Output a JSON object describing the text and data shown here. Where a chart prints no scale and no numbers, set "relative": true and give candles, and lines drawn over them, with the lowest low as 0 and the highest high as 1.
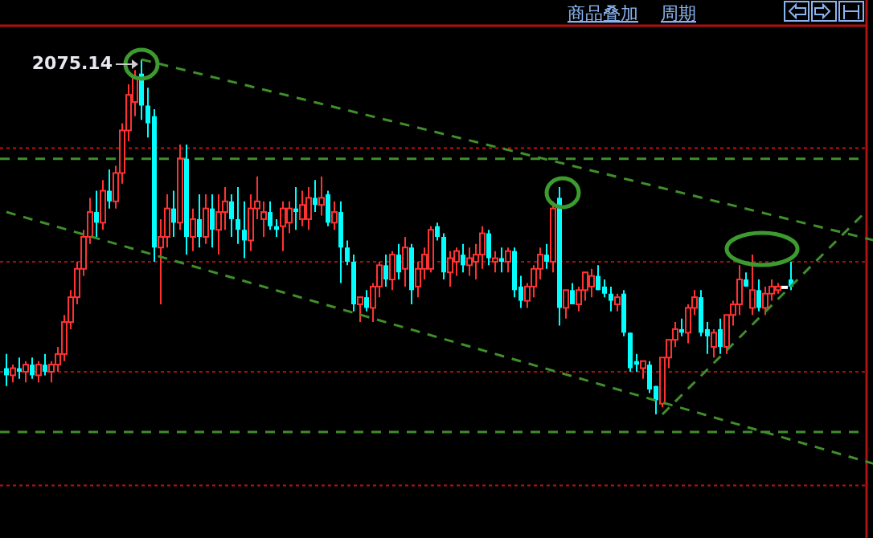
{
  "chart_data": {
    "type": "candlestick",
    "relative": true,
    "categories": [
      null,
      null,
      null,
      null,
      null,
      null,
      null,
      null,
      null,
      null,
      null,
      null,
      null,
      null,
      null,
      null,
      null,
      null,
      null,
      null,
      null,
      null,
      null,
      null,
      null,
      null,
      null,
      null,
      null,
      null,
      null,
      null,
      null,
      null,
      null,
      null,
      null,
      null,
      null,
      null,
      null,
      null,
      null,
      null,
      null,
      null,
      null,
      null,
      null,
      null,
      null,
      null,
      null,
      null,
      null,
      null,
      null,
      null,
      null,
      null,
      null,
      null,
      null,
      null,
      null,
      null,
      null,
      null,
      null,
      null,
      null,
      null,
      null,
      null,
      null,
      null,
      null,
      null,
      null,
      null,
      null,
      null,
      null,
      null,
      null,
      null,
      null,
      null,
      null,
      null,
      null,
      null,
      null,
      null,
      null,
      null,
      null,
      null,
      null,
      null,
      null,
      null,
      null,
      null,
      null,
      null,
      null,
      null,
      null,
      null,
      null,
      null,
      null,
      null,
      null,
      null,
      null,
      null,
      null,
      null,
      null,
      null,
      null,
      null,
      null,
      null,
      null,
      null,
      null,
      null,
      null,
      null,
      null,
      null,
      null,
      null
    ],
    "series": [
      {
        "colors": [
          "#00ffff",
          "#ff3232",
          "#00ffff",
          "#ff3232",
          "#00ffff",
          "#ff3232",
          "#00ffff",
          "#ff3232",
          "#ff3232",
          "#ff3232",
          "#ff3232",
          "#ff3232",
          "#ff3232",
          "#ff3232",
          "#00ffff",
          "#ff3232",
          "#00ffff",
          "#ff3232",
          "#ff3232",
          "#ff3232",
          "#ff3232",
          "#00ffff",
          "#00ffff",
          "#00ffff",
          "#ff3232",
          "#ff3232",
          "#00ffff",
          "#ff3232",
          "#00ffff",
          "#ff3232",
          "#00ffff",
          "#ff3232",
          "#00ffff",
          "#ff3232",
          "#ff3232",
          "#00ffff",
          "#00ffff",
          "#00ffff",
          "#ff3232",
          "#ff3232",
          "#ff3232",
          "#00ffff",
          "#00ffff",
          "#ff3232",
          "#ff3232",
          "#00ffff",
          "#ff3232",
          "#ff3232",
          "#00ffff",
          "#ff3232",
          "#00ffff",
          "#ff3232",
          "#00ffff",
          "#00ffff",
          "#00ffff",
          "#ff3232",
          "#00ffff",
          "#ff3232",
          "#ff3232",
          "#00ffff",
          "#ff3232",
          "#00ffff",
          "#ff3232",
          "#00ffff",
          "#ff3232",
          "#ff3232",
          "#ff3232",
          "#00ffff",
          "#00ffff",
          "#ff3232",
          "#ff3232",
          "#00ffff",
          "#ff3232",
          "#ff3232",
          "#ff3232",
          "#00ffff",
          "#ff3232",
          "#00ffff",
          "#ff3232",
          "#00ffff",
          "#00ffff",
          "#ff3232",
          "#ff3232",
          "#ff3232",
          "#00ffff",
          "#ff3232",
          "#00ffff",
          "#ff3232",
          "#00ffff",
          "#ff3232",
          "#ff3232",
          "#ff3232",
          "#00ffff",
          "#00ffff",
          "#00ffff",
          "#ff3232",
          "#00ffff",
          "#00ffff",
          "#00ffff",
          "#ff3232",
          "#00ffff",
          "#00ffff",
          "#ff3232",
          "#ff3232",
          "#ff3232",
          "#00ffff",
          "#ff3232",
          "#ff3232",
          "#00ffff",
          "#00ffff",
          "#ff3232",
          "#00ffff",
          "#ff3232",
          "#ff3232",
          "#ff3232",
          "#00ffff",
          "#ff3232",
          "#00ffff",
          "#ff3232",
          "#ff3232",
          "#ff3232",
          "#ffffff",
          "#00ffff",
          null,
          null,
          null,
          null,
          null,
          null,
          null,
          null,
          null,
          null,
          null,
          null,
          null
        ],
        "ohlc": [
          [
            0.13,
            0.17,
            0.08,
            0.11
          ],
          [
            0.11,
            0.14,
            0.09,
            0.13
          ],
          [
            0.13,
            0.16,
            0.1,
            0.12
          ],
          [
            0.12,
            0.15,
            0.09,
            0.14
          ],
          [
            0.14,
            0.16,
            0.1,
            0.11
          ],
          [
            0.11,
            0.15,
            0.09,
            0.14
          ],
          [
            0.14,
            0.17,
            0.11,
            0.12
          ],
          [
            0.12,
            0.15,
            0.09,
            0.14
          ],
          [
            0.14,
            0.19,
            0.12,
            0.17
          ],
          [
            0.17,
            0.28,
            0.15,
            0.26
          ],
          [
            0.26,
            0.35,
            0.24,
            0.33
          ],
          [
            0.33,
            0.43,
            0.31,
            0.41
          ],
          [
            0.41,
            0.52,
            0.39,
            0.5
          ],
          [
            0.5,
            0.61,
            0.48,
            0.57
          ],
          [
            0.57,
            0.63,
            0.5,
            0.54
          ],
          [
            0.54,
            0.66,
            0.52,
            0.63
          ],
          [
            0.63,
            0.69,
            0.58,
            0.6
          ],
          [
            0.6,
            0.7,
            0.58,
            0.68
          ],
          [
            0.68,
            0.82,
            0.65,
            0.8
          ],
          [
            0.8,
            0.93,
            0.77,
            0.9
          ],
          [
            0.88,
            0.97,
            0.84,
            0.95
          ],
          [
            0.96,
            1.0,
            0.83,
            0.87
          ],
          [
            0.87,
            0.92,
            0.78,
            0.82
          ],
          [
            0.84,
            0.86,
            0.43,
            0.47
          ],
          [
            0.47,
            0.55,
            0.31,
            0.5
          ],
          [
            0.5,
            0.62,
            0.47,
            0.58
          ],
          [
            0.58,
            0.63,
            0.5,
            0.54
          ],
          [
            0.54,
            0.76,
            0.52,
            0.72
          ],
          [
            0.72,
            0.76,
            0.45,
            0.5
          ],
          [
            0.5,
            0.58,
            0.46,
            0.55
          ],
          [
            0.55,
            0.62,
            0.47,
            0.5
          ],
          [
            0.5,
            0.62,
            0.48,
            0.58
          ],
          [
            0.58,
            0.62,
            0.47,
            0.52
          ],
          [
            0.52,
            0.62,
            0.45,
            0.57
          ],
          [
            0.57,
            0.64,
            0.52,
            0.6
          ],
          [
            0.6,
            0.62,
            0.5,
            0.55
          ],
          [
            0.55,
            0.64,
            0.48,
            0.52
          ],
          [
            0.52,
            0.6,
            0.44,
            0.49
          ],
          [
            0.49,
            0.62,
            0.46,
            0.58
          ],
          [
            0.58,
            0.67,
            0.55,
            0.6
          ],
          [
            0.55,
            0.6,
            0.5,
            0.57
          ],
          [
            0.57,
            0.6,
            0.52,
            0.53
          ],
          [
            0.53,
            0.55,
            0.5,
            0.52
          ],
          [
            0.53,
            0.6,
            0.46,
            0.58
          ],
          [
            0.54,
            0.6,
            0.51,
            0.58
          ],
          [
            0.58,
            0.64,
            0.52,
            0.57
          ],
          [
            0.55,
            0.63,
            0.53,
            0.59
          ],
          [
            0.55,
            0.64,
            0.52,
            0.61
          ],
          [
            0.61,
            0.66,
            0.57,
            0.59
          ],
          [
            0.59,
            0.67,
            0.56,
            0.61
          ],
          [
            0.62,
            0.63,
            0.53,
            0.54
          ],
          [
            0.54,
            0.6,
            0.52,
            0.57
          ],
          [
            0.57,
            0.6,
            0.37,
            0.47
          ],
          [
            0.47,
            0.49,
            0.42,
            0.43
          ],
          [
            0.43,
            0.45,
            0.29,
            0.31
          ],
          [
            0.31,
            0.33,
            0.26,
            0.33
          ],
          [
            0.33,
            0.35,
            0.29,
            0.3
          ],
          [
            0.3,
            0.37,
            0.26,
            0.36
          ],
          [
            0.36,
            0.43,
            0.33,
            0.42
          ],
          [
            0.42,
            0.45,
            0.36,
            0.38
          ],
          [
            0.38,
            0.46,
            0.35,
            0.45
          ],
          [
            0.45,
            0.48,
            0.38,
            0.4
          ],
          [
            0.41,
            0.5,
            0.36,
            0.47
          ],
          [
            0.47,
            0.48,
            0.31,
            0.35
          ],
          [
            0.36,
            0.43,
            0.33,
            0.41
          ],
          [
            0.41,
            0.47,
            0.38,
            0.45
          ],
          [
            0.41,
            0.53,
            0.4,
            0.52
          ],
          [
            0.53,
            0.54,
            0.49,
            0.5
          ],
          [
            0.5,
            0.51,
            0.38,
            0.4
          ],
          [
            0.4,
            0.46,
            0.36,
            0.44
          ],
          [
            0.43,
            0.47,
            0.39,
            0.46
          ],
          [
            0.45,
            0.48,
            0.4,
            0.42
          ],
          [
            0.42,
            0.47,
            0.39,
            0.44
          ],
          [
            0.43,
            0.48,
            0.38,
            0.45
          ],
          [
            0.45,
            0.53,
            0.41,
            0.51
          ],
          [
            0.51,
            0.52,
            0.42,
            0.44
          ],
          [
            0.43,
            0.46,
            0.4,
            0.44
          ],
          [
            0.44,
            0.47,
            0.4,
            0.43
          ],
          [
            0.43,
            0.47,
            0.4,
            0.46
          ],
          [
            0.46,
            0.47,
            0.33,
            0.35
          ],
          [
            0.36,
            0.39,
            0.3,
            0.32
          ],
          [
            0.32,
            0.37,
            0.3,
            0.36
          ],
          [
            0.36,
            0.42,
            0.33,
            0.41
          ],
          [
            0.41,
            0.47,
            0.38,
            0.45
          ],
          [
            0.45,
            0.48,
            0.41,
            0.43
          ],
          [
            0.43,
            0.6,
            0.4,
            0.58
          ],
          [
            0.61,
            0.64,
            0.25,
            0.3
          ],
          [
            0.3,
            0.35,
            0.27,
            0.35
          ],
          [
            0.35,
            0.37,
            0.31,
            0.31
          ],
          [
            0.31,
            0.36,
            0.29,
            0.35
          ],
          [
            0.35,
            0.4,
            0.32,
            0.4
          ],
          [
            0.36,
            0.41,
            0.33,
            0.39
          ],
          [
            0.39,
            0.42,
            0.35,
            0.35
          ],
          [
            0.36,
            0.38,
            0.33,
            0.34
          ],
          [
            0.34,
            0.36,
            0.29,
            0.32
          ],
          [
            0.31,
            0.34,
            0.29,
            0.33
          ],
          [
            0.34,
            0.35,
            0.22,
            0.23
          ],
          [
            0.23,
            0.23,
            0.12,
            0.13
          ],
          [
            0.15,
            0.17,
            0.12,
            0.14
          ],
          [
            0.13,
            0.15,
            0.1,
            0.15
          ],
          [
            0.14,
            0.15,
            0.06,
            0.07
          ],
          [
            0.08,
            0.08,
            0.0,
            0.04
          ],
          [
            0.03,
            0.16,
            0.02,
            0.16
          ],
          [
            0.16,
            0.21,
            0.13,
            0.21
          ],
          [
            0.21,
            0.26,
            0.19,
            0.24
          ],
          [
            0.24,
            0.27,
            0.22,
            0.23
          ],
          [
            0.23,
            0.31,
            0.2,
            0.3
          ],
          [
            0.3,
            0.35,
            0.28,
            0.33
          ],
          [
            0.33,
            0.35,
            0.22,
            0.23
          ],
          [
            0.24,
            0.26,
            0.17,
            0.22
          ],
          [
            0.19,
            0.24,
            0.16,
            0.23
          ],
          [
            0.24,
            0.27,
            0.17,
            0.19
          ],
          [
            0.19,
            0.28,
            0.17,
            0.28
          ],
          [
            0.28,
            0.32,
            0.25,
            0.31
          ],
          [
            0.31,
            0.42,
            0.28,
            0.38
          ],
          [
            0.38,
            0.4,
            0.36,
            0.36
          ],
          [
            0.3,
            0.45,
            0.28,
            0.35
          ],
          [
            0.35,
            0.38,
            0.29,
            0.3
          ],
          [
            0.3,
            0.36,
            0.28,
            0.34
          ],
          [
            0.34,
            0.38,
            0.32,
            0.36
          ],
          [
            0.35,
            0.37,
            0.34,
            0.36
          ],
          [
            0.36,
            0.36,
            0.36,
            0.36
          ],
          [
            0.38,
            0.43,
            0.35,
            0.36
          ],
          null,
          null,
          null,
          null,
          null,
          null,
          null,
          null,
          null,
          null,
          null,
          null,
          null
        ]
      },
      {
        "type": "line",
        "color": "#3f8f2a",
        "line_style": "dashed",
        "values": [
          null,
          null,
          null,
          null,
          null,
          null,
          null,
          null,
          null,
          null,
          null,
          null,
          null,
          null,
          null,
          null,
          null,
          null,
          null,
          null,
          null,
          1.0,
          null,
          null,
          null,
          null,
          null,
          null,
          null,
          null,
          null,
          null,
          null,
          null,
          null,
          null,
          null,
          null,
          null,
          null,
          null,
          null,
          null,
          null,
          null,
          null,
          null,
          null,
          null,
          null,
          null,
          null,
          null,
          null,
          null,
          null,
          null,
          null,
          null,
          null,
          null,
          null,
          null,
          null,
          null,
          null,
          null,
          null,
          null,
          null,
          null,
          null,
          null,
          null,
          null,
          null,
          null,
          null,
          null,
          null,
          null,
          null,
          null,
          null,
          null,
          null,
          null,
          null,
          null,
          null,
          null,
          null,
          null,
          null,
          null,
          null,
          null,
          null,
          null,
          null,
          null,
          null,
          null,
          null,
          null,
          null,
          null,
          null,
          null,
          null,
          null,
          null,
          null,
          null,
          null,
          null,
          null,
          null,
          null,
          null,
          null,
          null,
          null,
          null,
          null,
          null,
          null,
          null,
          null,
          null,
          null,
          null,
          null,
          null,
          null,
          0.49
        ]
      },
      {
        "type": "line",
        "color": "#3f8f2a",
        "line_style": "dashed",
        "values": [
          0.57,
          null,
          null,
          null,
          null,
          null,
          null,
          null,
          null,
          null,
          null,
          null,
          null,
          null,
          null,
          null,
          null,
          null,
          null,
          null,
          null,
          null,
          null,
          null,
          null,
          null,
          null,
          null,
          null,
          null,
          null,
          null,
          null,
          null,
          null,
          null,
          null,
          null,
          null,
          null,
          null,
          null,
          null,
          null,
          null,
          null,
          null,
          null,
          null,
          null,
          null,
          null,
          null,
          null,
          null,
          null,
          null,
          null,
          null,
          null,
          null,
          null,
          null,
          null,
          null,
          null,
          null,
          null,
          null,
          null,
          null,
          null,
          null,
          null,
          null,
          null,
          null,
          null,
          null,
          null,
          null,
          null,
          null,
          null,
          null,
          null,
          null,
          null,
          null,
          null,
          null,
          null,
          null,
          null,
          null,
          null,
          null,
          null,
          null,
          null,
          null,
          null,
          null,
          null,
          null,
          null,
          null,
          null,
          null,
          null,
          null,
          null,
          null,
          null,
          null,
          null,
          null,
          null,
          null,
          null,
          null,
          null,
          null,
          null,
          null,
          null,
          null,
          null,
          null,
          null,
          null,
          null,
          null,
          null,
          null,
          -0.14
        ]
      },
      {
        "type": "line",
        "color": "#3f8f2a",
        "line_style": "dashed",
        "values": [
          null,
          null,
          null,
          null,
          null,
          null,
          null,
          null,
          null,
          null,
          null,
          null,
          null,
          null,
          null,
          null,
          null,
          null,
          null,
          null,
          null,
          null,
          null,
          null,
          null,
          null,
          null,
          null,
          null,
          null,
          null,
          null,
          null,
          null,
          null,
          null,
          null,
          null,
          null,
          null,
          null,
          null,
          null,
          null,
          null,
          null,
          null,
          null,
          null,
          null,
          null,
          null,
          null,
          null,
          null,
          null,
          null,
          null,
          null,
          null,
          null,
          null,
          null,
          null,
          null,
          null,
          null,
          null,
          null,
          null,
          null,
          null,
          null,
          null,
          null,
          null,
          null,
          null,
          null,
          null,
          null,
          null,
          null,
          null,
          null,
          null,
          null,
          null,
          null,
          null,
          null,
          null,
          null,
          null,
          null,
          null,
          null,
          null,
          null,
          null,
          null,
          null,
          0.0,
          null,
          null,
          null,
          null,
          null,
          null,
          null,
          null,
          null,
          null,
          null,
          null,
          null,
          null,
          null,
          null,
          null,
          null,
          null,
          null,
          null,
          null,
          null,
          null,
          null,
          null,
          null,
          null,
          null,
          null,
          0.56,
          null,
          null
        ]
      }
    ],
    "ref_lines": [
      {
        "axis": "y",
        "value": 0.75,
        "color": "#c01010",
        "line_style": "dotted"
      },
      {
        "axis": "y",
        "value": 0.72,
        "color": "#3f8f2a",
        "line_style": "dashed"
      },
      {
        "axis": "y",
        "value": 0.43,
        "color": "#a01010",
        "line_style": "dotted"
      },
      {
        "axis": "y",
        "value": 0.12,
        "color": "#a01010",
        "line_style": "dotted"
      },
      {
        "axis": "y",
        "value": -0.05,
        "color": "#3f8f2a",
        "line_style": "dashed"
      },
      {
        "axis": "y",
        "value": -0.2,
        "color": "#c01010",
        "line_style": "dotted"
      }
    ],
    "annotations": [
      "商品叠加",
      "周期",
      "2075.14"
    ],
    "tick_labels": false
  }
}
